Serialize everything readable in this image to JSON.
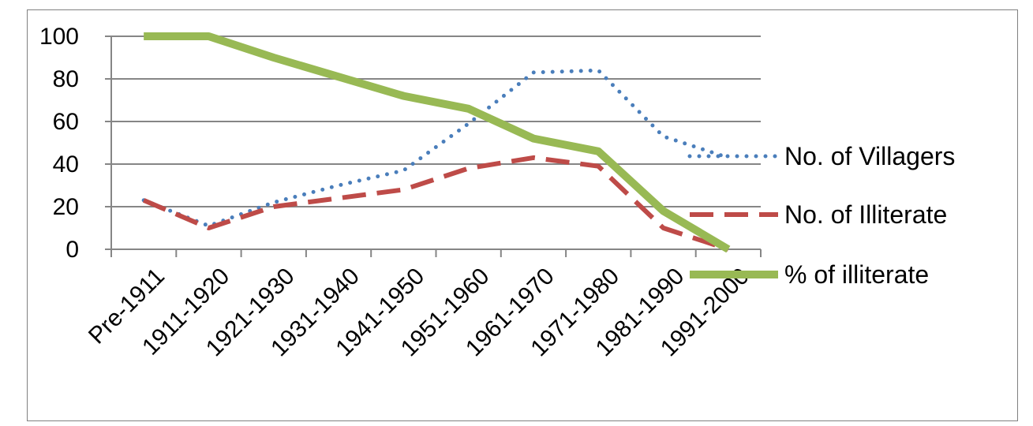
{
  "chart_data": {
    "type": "line",
    "title": "",
    "xlabel": "",
    "ylabel": "",
    "categories": [
      "Pre-1911",
      "1911-1920",
      "1921-1930",
      "1931-1940",
      "1941-1950",
      "1951-1960",
      "1961-1970",
      "1971-1980",
      "1981-1990",
      "1991-2000"
    ],
    "ylim": [
      0,
      100
    ],
    "yticks": [
      0,
      20,
      40,
      60,
      80,
      100
    ],
    "ytick_labels": [
      "0",
      "20",
      "40",
      "60",
      "80",
      "100"
    ],
    "grid": true,
    "legend_position": "right",
    "series": [
      {
        "name": "No. of Villagers",
        "values": [
          23,
          11,
          22,
          30,
          37,
          59,
          83,
          84,
          53,
          43
        ],
        "color": "#4a7ebb",
        "style": "dotted"
      },
      {
        "name": "No. of Illiterate",
        "values": [
          23,
          10,
          20,
          24,
          28,
          38,
          43,
          39,
          10,
          0
        ],
        "color": "#be4b48",
        "style": "dashed"
      },
      {
        "name": "% of illiterate",
        "values": [
          100,
          100,
          90,
          81,
          72,
          66,
          52,
          46,
          18,
          0
        ],
        "color": "#98b954",
        "style": "solid"
      }
    ]
  }
}
